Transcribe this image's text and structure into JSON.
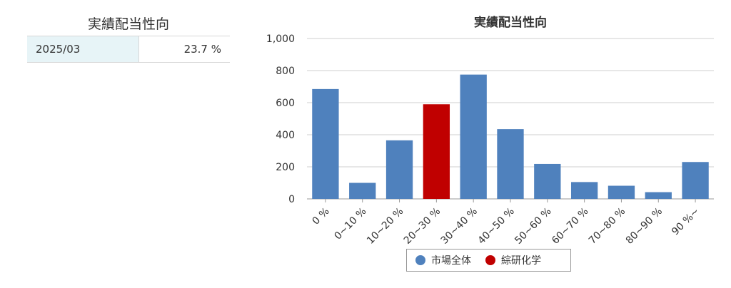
{
  "summary": {
    "title": "実績配当性向",
    "rows": [
      {
        "period": "2025/03",
        "value": "23.7 %"
      }
    ]
  },
  "colors": {
    "market": "#4f81bd",
    "company": "#c00000"
  },
  "chart_data": {
    "type": "bar",
    "title": "実績配当性向",
    "categories": [
      "0 %",
      "0~10 %",
      "10~20 %",
      "20~30 %",
      "30~40 %",
      "40~50 %",
      "50~60 %",
      "60~70 %",
      "70~80 %",
      "80~90 %",
      "90 %~"
    ],
    "values": [
      685,
      100,
      365,
      590,
      775,
      435,
      218,
      105,
      82,
      42,
      230
    ],
    "highlight_index": 3,
    "ylim": [
      0,
      1000
    ],
    "yticks": [
      0,
      200,
      400,
      600,
      800,
      1000
    ],
    "ytick_labels": [
      "0",
      "200",
      "400",
      "600",
      "800",
      "1,000"
    ],
    "grid": true,
    "legend": {
      "position": "bottom",
      "entries": [
        {
          "name": "市場全体",
          "color": "#4f81bd"
        },
        {
          "name": "綜研化学",
          "color": "#c00000"
        }
      ]
    }
  }
}
